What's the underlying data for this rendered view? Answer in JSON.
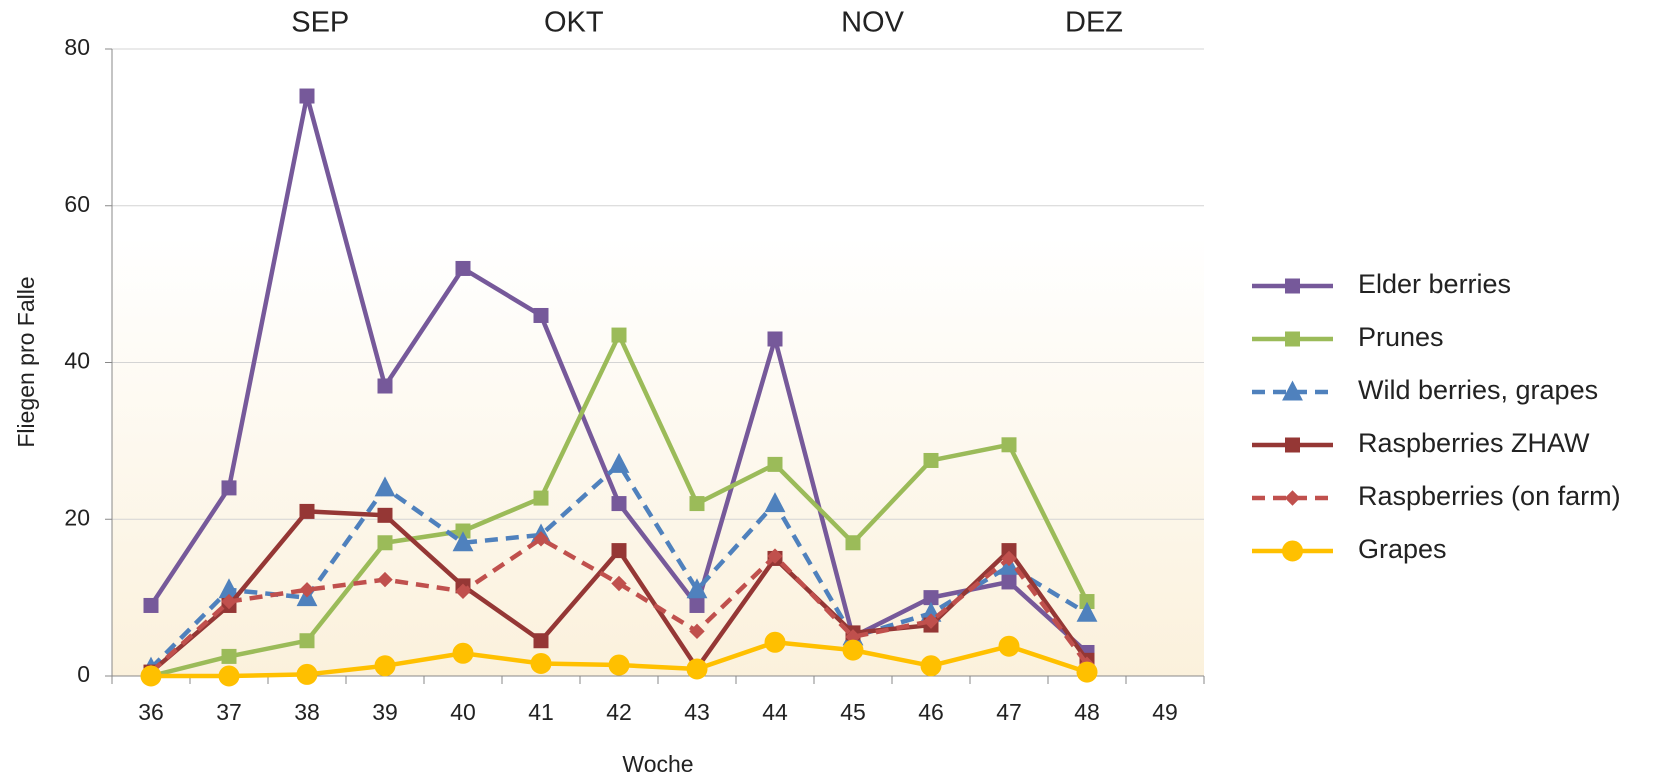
{
  "chart_data": {
    "type": "line",
    "x_label": "Woche",
    "y_label": "Fliegen pro Falle",
    "month_labels": [
      "SEP",
      "OKT",
      "NOV",
      "DEZ"
    ],
    "categories": [
      "36",
      "37",
      "38",
      "39",
      "40",
      "41",
      "42",
      "43",
      "44",
      "45",
      "46",
      "47",
      "48",
      "49"
    ],
    "ylim": [
      0,
      80
    ],
    "yticks": [
      0,
      20,
      40,
      60,
      80
    ],
    "grid": true,
    "legend": "right",
    "series": [
      {
        "name": "Elder berries",
        "color": "#76599a",
        "marker": "square",
        "dashed": false,
        "values": [
          9,
          24,
          74,
          37,
          52,
          46,
          22,
          9,
          43,
          5,
          10,
          12,
          3,
          null
        ]
      },
      {
        "name": "Prunes",
        "color": "#9bbb59",
        "marker": "square",
        "dashed": false,
        "values": [
          0,
          2.5,
          4.5,
          17,
          18.5,
          22.7,
          43.5,
          22,
          27,
          17,
          27.5,
          29.5,
          9.5,
          null
        ]
      },
      {
        "name": "Wild berries, grapes",
        "color": "#4f81bd",
        "marker": "triangle",
        "dashed": true,
        "values": [
          1,
          11,
          10,
          24,
          17,
          18,
          27,
          11,
          22,
          5,
          8,
          14,
          8,
          null
        ]
      },
      {
        "name": "Raspberries ZHAW",
        "color": "#953735",
        "marker": "square",
        "dashed": false,
        "values": [
          0.5,
          9,
          21,
          20.5,
          11.5,
          4.5,
          16,
          1,
          15,
          5.5,
          6.5,
          16,
          2,
          null
        ]
      },
      {
        "name": "Raspberries (on farm)",
        "color": "#c0504d",
        "marker": "diamond",
        "dashed": true,
        "values": [
          0.5,
          9.5,
          11,
          12.3,
          10.8,
          17.5,
          11.8,
          5.7,
          15.3,
          5,
          7,
          15,
          1.5,
          null
        ]
      },
      {
        "name": "Grapes",
        "color": "#ffc000",
        "marker": "circle",
        "dashed": false,
        "values": [
          0,
          0,
          0.2,
          1.3,
          2.9,
          1.6,
          1.4,
          0.9,
          4.3,
          3.3,
          1.3,
          3.8,
          0.5,
          null
        ]
      }
    ]
  }
}
